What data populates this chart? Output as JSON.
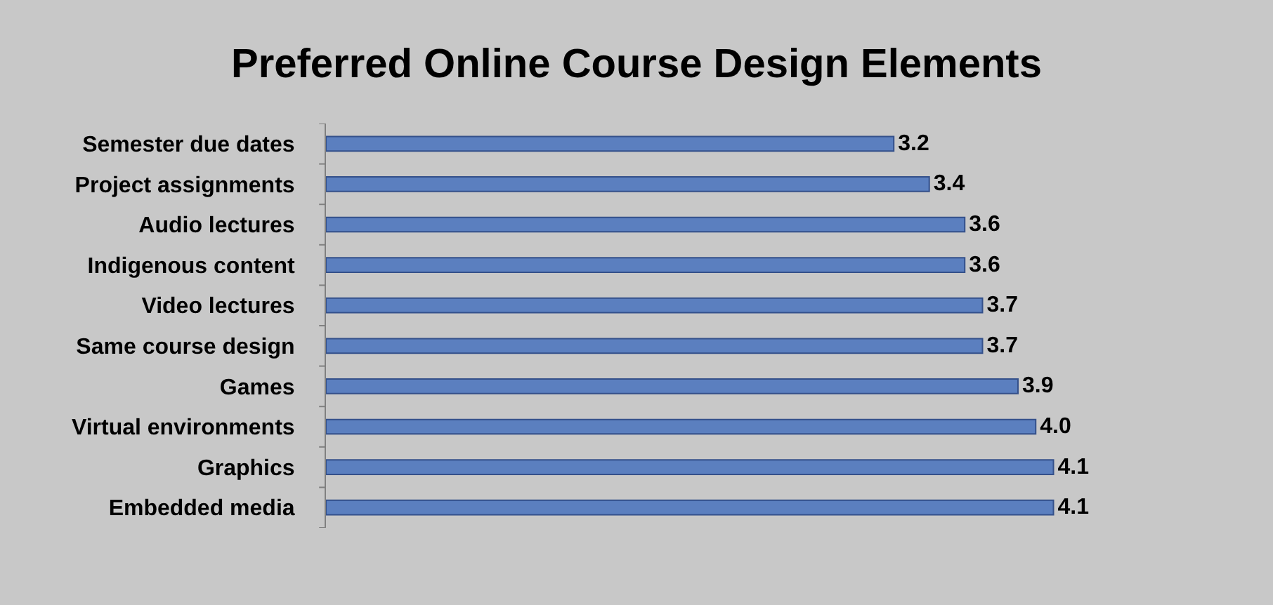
{
  "chart_data": {
    "type": "bar",
    "orientation": "horizontal",
    "title": "Preferred Online Course Design Elements",
    "categories": [
      "Semester due dates",
      "Project assignments",
      "Audio lectures",
      "Indigenous content",
      "Video lectures",
      "Same course design",
      "Games",
      "Virtual environments",
      "Graphics",
      "Embedded media"
    ],
    "values": [
      3.2,
      3.4,
      3.6,
      3.6,
      3.7,
      3.7,
      3.9,
      4.0,
      4.1,
      4.1
    ],
    "value_labels": [
      "3.2",
      "3.4",
      "3.6",
      "3.6",
      "3.7",
      "3.7",
      "3.9",
      "4.0",
      "4.1",
      "4.1"
    ],
    "color": "#5b7fbf",
    "tick_labels": "y"
  }
}
